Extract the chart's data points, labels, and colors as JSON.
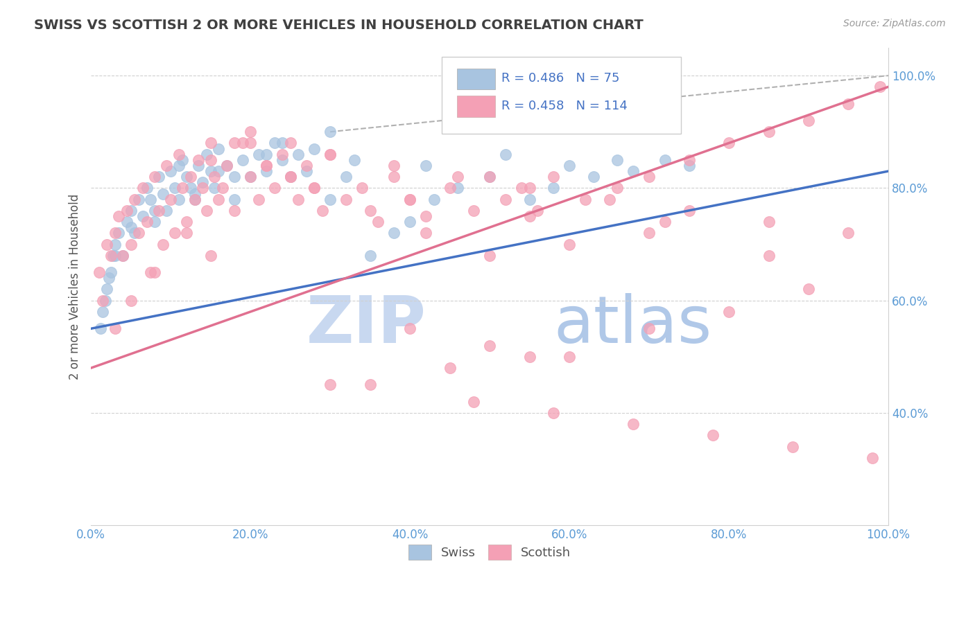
{
  "title": "SWISS VS SCOTTISH 2 OR MORE VEHICLES IN HOUSEHOLD CORRELATION CHART",
  "source_text": "Source: ZipAtlas.com",
  "ylabel": "2 or more Vehicles in Household",
  "xlim": [
    0,
    100
  ],
  "ylim": [
    20,
    105
  ],
  "xtick_labels": [
    "0.0%",
    "20.0%",
    "40.0%",
    "60.0%",
    "80.0%",
    "100.0%"
  ],
  "xtick_values": [
    0,
    20,
    40,
    60,
    80,
    100
  ],
  "ytick_labels": [
    "40.0%",
    "60.0%",
    "80.0%",
    "100.0%"
  ],
  "ytick_values": [
    40,
    60,
    80,
    100
  ],
  "swiss_color": "#a8c4e0",
  "scottish_color": "#f4a0b5",
  "swiss_line_color": "#4472c4",
  "scottish_line_color": "#e07090",
  "swiss_R": 0.486,
  "swiss_N": 75,
  "scottish_R": 0.458,
  "scottish_N": 114,
  "legend_color": "#4472c4",
  "watermark_zip_color": "#c8d8f0",
  "watermark_atlas_color": "#b0c8e8",
  "swiss_x": [
    1.2,
    1.5,
    1.8,
    2.0,
    2.2,
    2.5,
    2.8,
    3.0,
    3.5,
    4.0,
    4.5,
    5.0,
    5.5,
    6.0,
    6.5,
    7.0,
    7.5,
    8.0,
    8.5,
    9.0,
    9.5,
    10.0,
    10.5,
    11.0,
    11.5,
    12.0,
    12.5,
    13.0,
    13.5,
    14.0,
    14.5,
    15.0,
    15.5,
    16.0,
    17.0,
    18.0,
    19.0,
    20.0,
    21.0,
    22.0,
    23.0,
    24.0,
    25.0,
    26.0,
    27.0,
    28.0,
    30.0,
    32.0,
    35.0,
    38.0,
    40.0,
    43.0,
    46.0,
    50.0,
    55.0,
    58.0,
    63.0,
    68.0,
    72.0,
    75.0,
    30.0,
    22.0,
    18.0,
    13.0,
    8.0,
    5.0,
    3.0,
    11.0,
    16.0,
    24.0,
    33.0,
    42.0,
    52.0,
    60.0,
    66.0
  ],
  "swiss_y": [
    55,
    58,
    60,
    62,
    64,
    65,
    68,
    70,
    72,
    68,
    74,
    76,
    72,
    78,
    75,
    80,
    78,
    74,
    82,
    79,
    76,
    83,
    80,
    78,
    85,
    82,
    80,
    78,
    84,
    81,
    86,
    83,
    80,
    87,
    84,
    78,
    85,
    82,
    86,
    83,
    88,
    85,
    82,
    86,
    83,
    87,
    78,
    82,
    68,
    72,
    74,
    78,
    80,
    82,
    78,
    80,
    82,
    83,
    85,
    84,
    90,
    86,
    82,
    79,
    76,
    73,
    68,
    84,
    83,
    88,
    85,
    84,
    86,
    84,
    85
  ],
  "scottish_x": [
    1.0,
    1.5,
    2.0,
    2.5,
    3.0,
    3.5,
    4.0,
    4.5,
    5.0,
    5.5,
    6.0,
    6.5,
    7.0,
    7.5,
    8.0,
    8.5,
    9.0,
    9.5,
    10.0,
    10.5,
    11.0,
    11.5,
    12.0,
    12.5,
    13.0,
    13.5,
    14.0,
    14.5,
    15.0,
    15.5,
    16.0,
    16.5,
    17.0,
    18.0,
    19.0,
    20.0,
    21.0,
    22.0,
    23.0,
    24.0,
    25.0,
    26.0,
    27.0,
    28.0,
    29.0,
    30.0,
    32.0,
    34.0,
    36.0,
    38.0,
    40.0,
    42.0,
    45.0,
    48.0,
    50.0,
    52.0,
    54.0,
    56.0,
    58.0,
    62.0,
    66.0,
    70.0,
    75.0,
    80.0,
    85.0,
    90.0,
    95.0,
    99.0,
    18.0,
    22.0,
    28.0,
    35.0,
    42.0,
    50.0,
    60.0,
    72.0,
    15.0,
    12.0,
    8.0,
    5.0,
    3.0,
    20.0,
    25.0,
    30.0,
    38.0,
    46.0,
    55.0,
    65.0,
    75.0,
    85.0,
    95.0,
    40.0,
    50.0,
    60.0,
    45.0,
    30.0,
    55.0,
    70.0,
    80.0,
    90.0,
    35.0,
    48.0,
    58.0,
    68.0,
    78.0,
    88.0,
    98.0,
    20.0,
    15.0,
    25.0,
    40.0,
    55.0,
    70.0,
    85.0
  ],
  "scottish_y": [
    65,
    60,
    70,
    68,
    72,
    75,
    68,
    76,
    70,
    78,
    72,
    80,
    74,
    65,
    82,
    76,
    70,
    84,
    78,
    72,
    86,
    80,
    74,
    82,
    78,
    85,
    80,
    76,
    88,
    82,
    78,
    80,
    84,
    76,
    88,
    82,
    78,
    84,
    80,
    86,
    82,
    78,
    84,
    80,
    76,
    86,
    78,
    80,
    74,
    82,
    78,
    75,
    80,
    76,
    82,
    78,
    80,
    76,
    82,
    78,
    80,
    82,
    85,
    88,
    90,
    92,
    95,
    98,
    88,
    84,
    80,
    76,
    72,
    68,
    70,
    74,
    68,
    72,
    65,
    60,
    55,
    90,
    88,
    86,
    84,
    82,
    80,
    78,
    76,
    74,
    72,
    55,
    52,
    50,
    48,
    45,
    50,
    55,
    58,
    62,
    45,
    42,
    40,
    38,
    36,
    34,
    32,
    88,
    85,
    82,
    78,
    75,
    72,
    68
  ]
}
